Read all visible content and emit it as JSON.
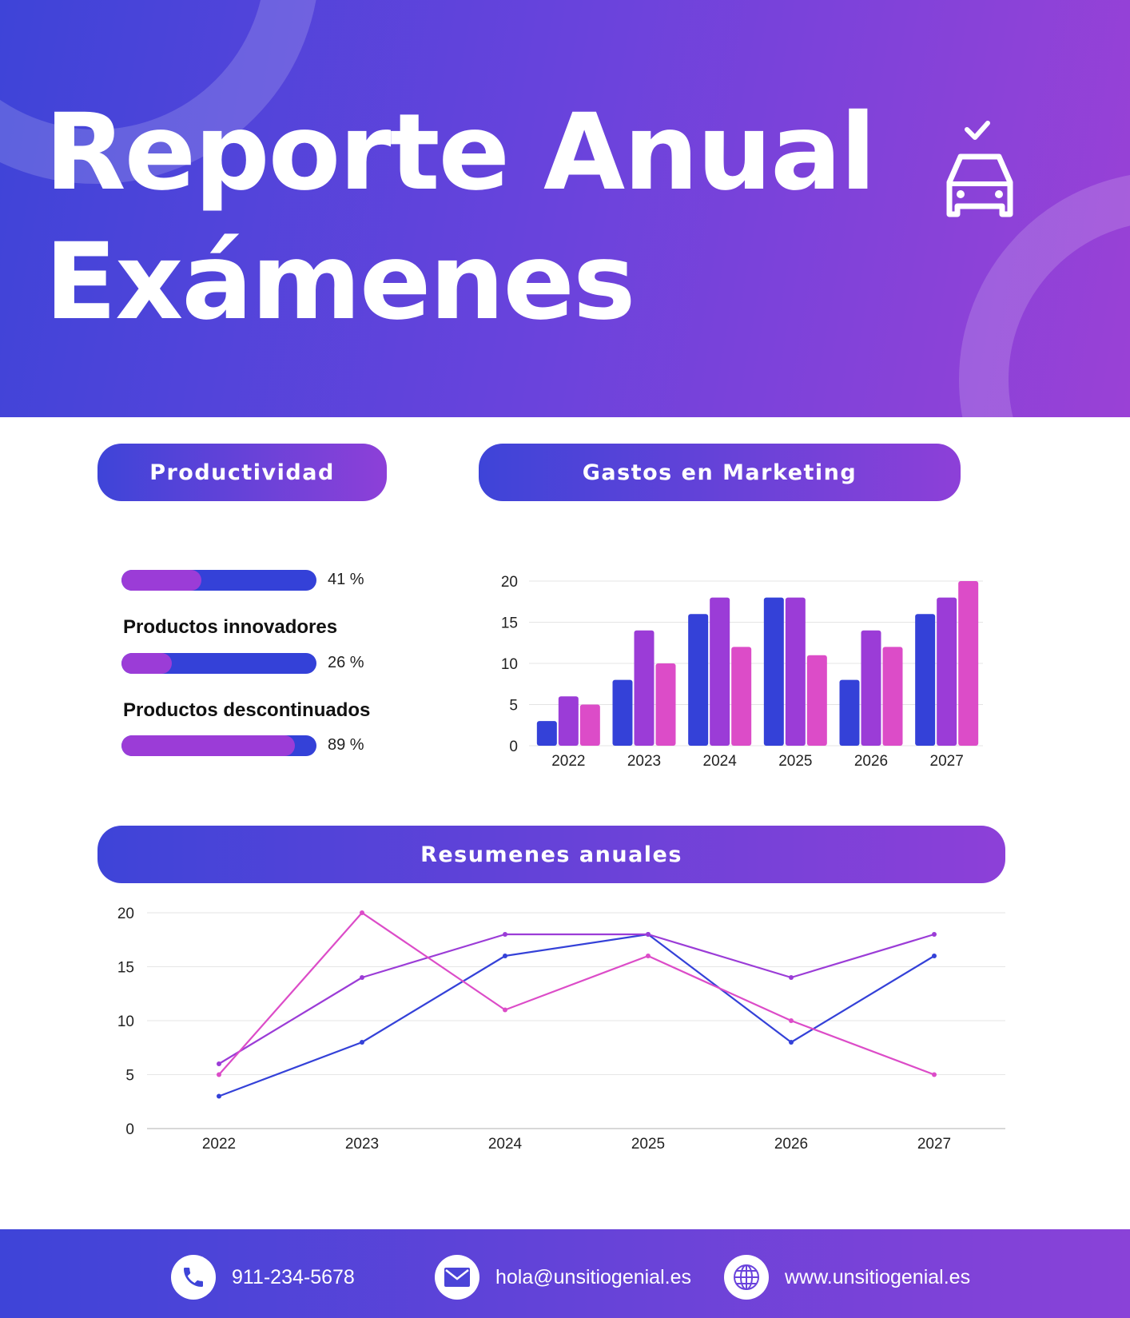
{
  "header": {
    "title_line1": "Reporte Anual",
    "title_line2": "Exámenes",
    "icon": "car-check-icon"
  },
  "sections": {
    "productivity": "Productividad",
    "marketing": "Gastos en Marketing",
    "summaries": "Resumenes anuales"
  },
  "productivity": {
    "items": [
      {
        "label": "",
        "percent": 41,
        "percent_label": "41 %"
      },
      {
        "label": "Productos innovadores",
        "percent": 26,
        "percent_label": "26 %"
      },
      {
        "label": "Productos descontinuados",
        "percent": 89,
        "percent_label": "89 %"
      }
    ]
  },
  "colors": {
    "series1": "#3441d8",
    "series2": "#9b3cd7",
    "series3": "#dc4cc8",
    "accent_start": "#3e44d8",
    "accent_end": "#9a41d6"
  },
  "chart_data": [
    {
      "type": "bar",
      "title": "Gastos en Marketing",
      "categories": [
        "2022",
        "2023",
        "2024",
        "2025",
        "2026",
        "2027"
      ],
      "series": [
        {
          "values": [
            3,
            8,
            16,
            18,
            8,
            16
          ]
        },
        {
          "values": [
            6,
            14,
            18,
            18,
            14,
            18
          ]
        },
        {
          "values": [
            5,
            10,
            12,
            11,
            12,
            20
          ]
        }
      ],
      "ylim": [
        0,
        20
      ],
      "yticks": [
        0,
        5,
        10,
        15,
        20
      ],
      "grid": true
    },
    {
      "type": "line",
      "title": "Resumenes anuales",
      "categories": [
        "2022",
        "2023",
        "2024",
        "2025",
        "2026",
        "2027"
      ],
      "series": [
        {
          "values": [
            3,
            8,
            16,
            18,
            8,
            16
          ]
        },
        {
          "values": [
            6,
            14,
            18,
            18,
            14,
            18
          ]
        },
        {
          "values": [
            5,
            20,
            11,
            16,
            10,
            5
          ]
        }
      ],
      "ylim": [
        0,
        20
      ],
      "yticks": [
        0,
        5,
        10,
        15,
        20
      ],
      "grid": true
    }
  ],
  "footer": {
    "phone": "911-234-5678",
    "email": "hola@unsitiogenial.es",
    "website": "www.unsitiogenial.es"
  }
}
